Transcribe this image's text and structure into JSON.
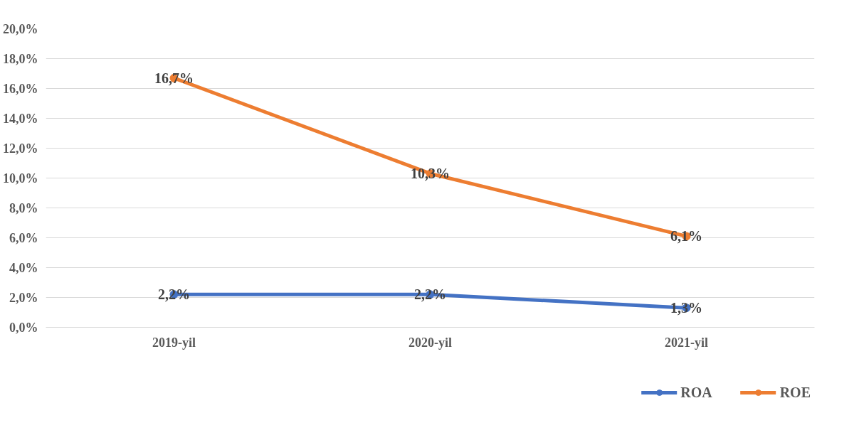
{
  "chart_data": {
    "type": "line",
    "categories": [
      "2019-yil",
      "2020-yil",
      "2021-yil"
    ],
    "series": [
      {
        "name": "ROA",
        "color": "#4472c4",
        "values": [
          2.2,
          2.2,
          1.3
        ],
        "value_labels": [
          "2,2%",
          "2,2%",
          "1,3%"
        ]
      },
      {
        "name": "ROE",
        "color": "#ed7d31",
        "values": [
          16.7,
          10.3,
          6.1
        ],
        "value_labels": [
          "16,7%",
          "10,3%",
          "6,1%"
        ]
      }
    ],
    "ylim": [
      0,
      20
    ],
    "yticks": [
      {
        "value": 0,
        "label": "0,0%"
      },
      {
        "value": 2,
        "label": "2,0%"
      },
      {
        "value": 4,
        "label": "4,0%"
      },
      {
        "value": 6,
        "label": "6,0%"
      },
      {
        "value": 8,
        "label": "8,0%"
      },
      {
        "value": 10,
        "label": "10,0%"
      },
      {
        "value": 12,
        "label": "12,0%"
      },
      {
        "value": 14,
        "label": "14,0%"
      },
      {
        "value": 16,
        "label": "16,0%"
      },
      {
        "value": 18,
        "label": "18,0%"
      },
      {
        "value": 20,
        "label": "20,0%"
      }
    ],
    "grid": "y",
    "legend": "bottom",
    "marker": "circle",
    "line_style": "solid"
  }
}
